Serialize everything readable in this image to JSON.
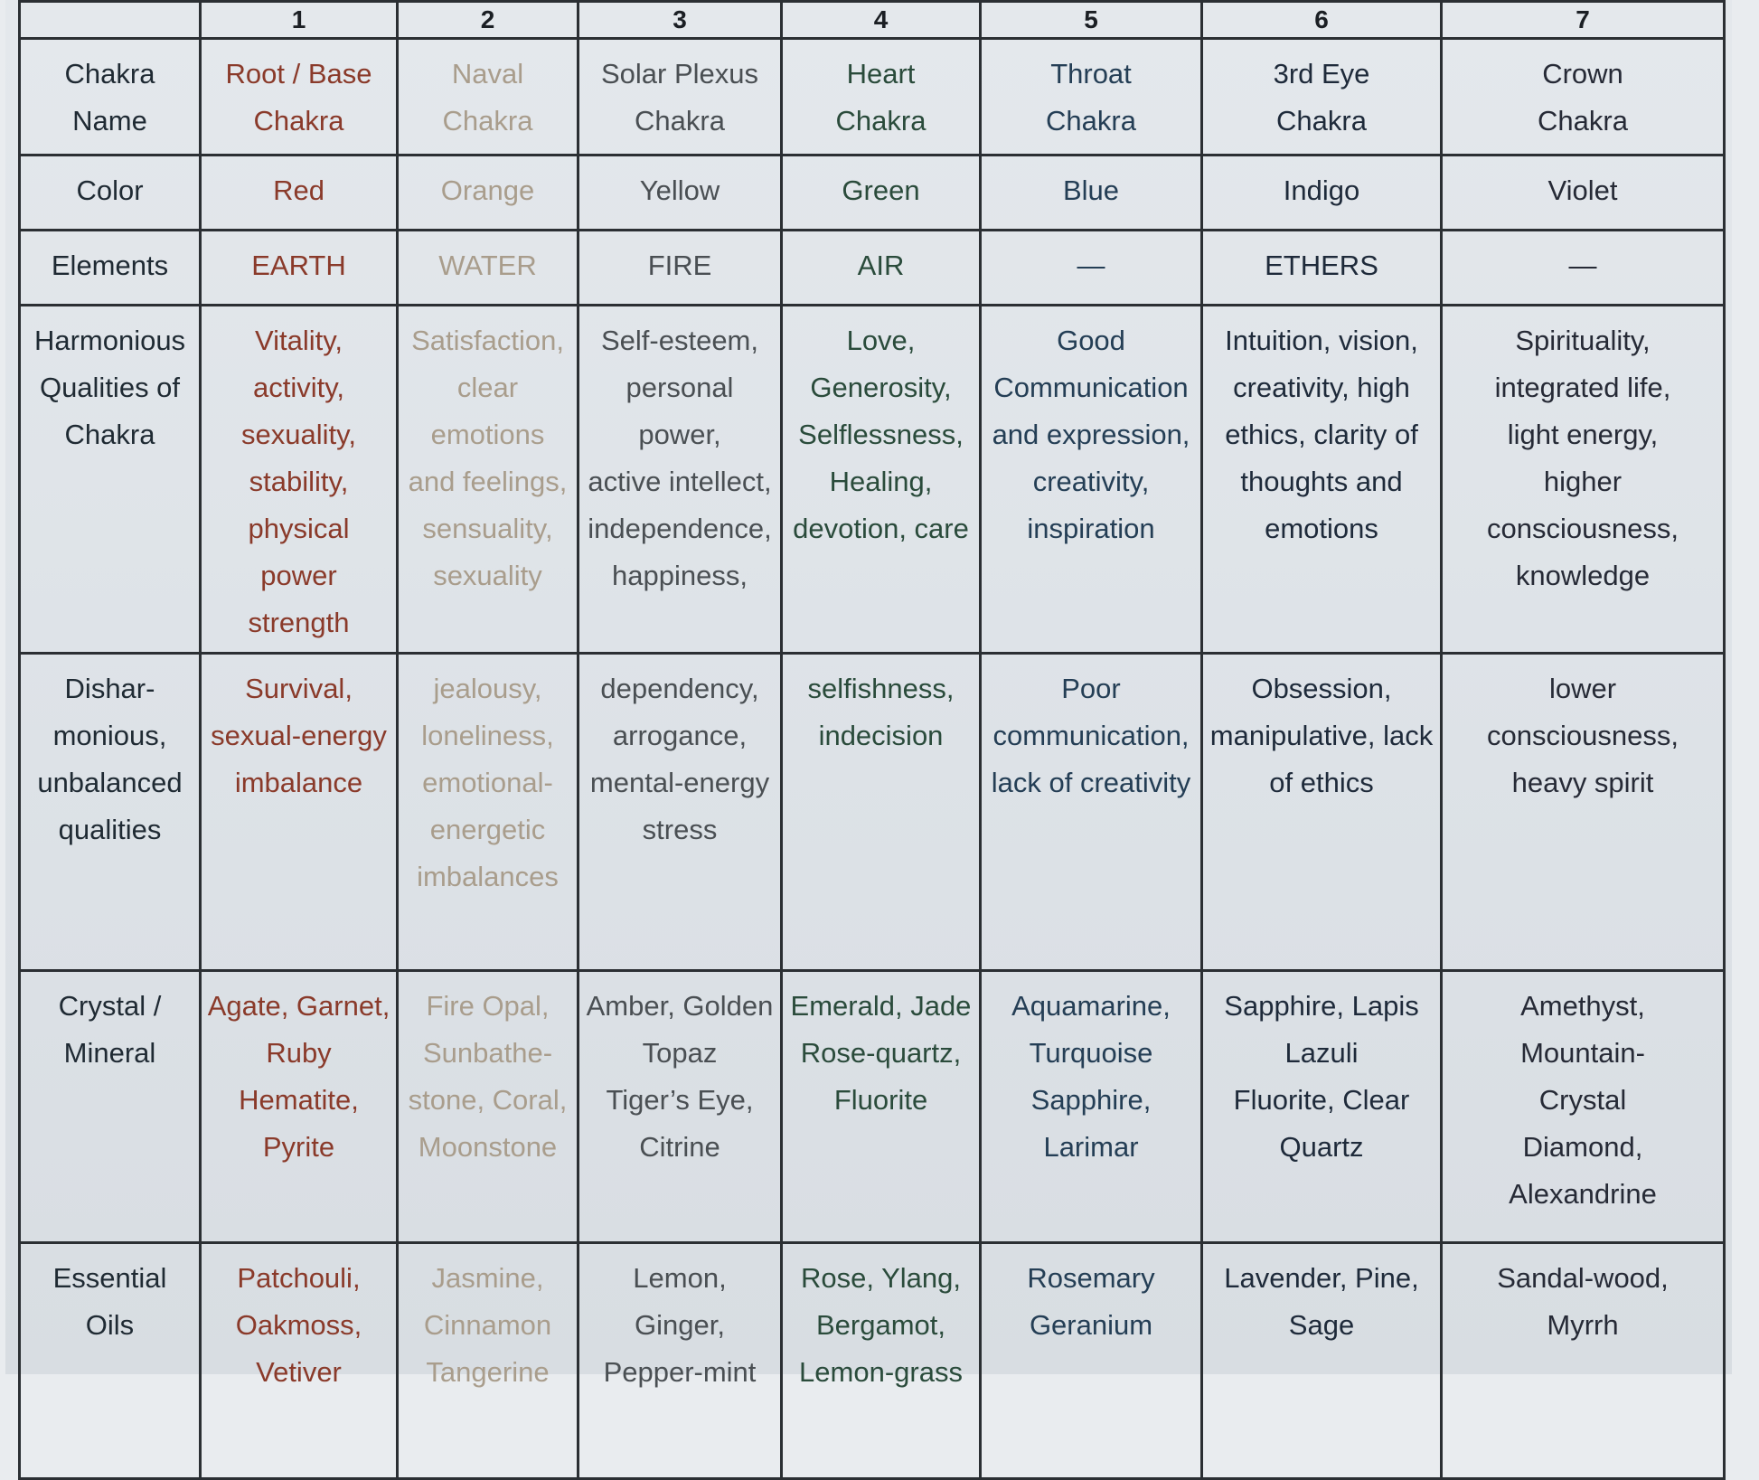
{
  "columns": [
    "1",
    "2",
    "3",
    "4",
    "5",
    "6",
    "7"
  ],
  "rows": [
    {
      "key": "name",
      "header": [
        "Chakra",
        "Name"
      ],
      "cells": [
        [
          "Root / Base",
          "Chakra"
        ],
        [
          "Naval",
          "Chakra"
        ],
        [
          "Solar Plexus",
          "Chakra"
        ],
        [
          "Heart",
          "Chakra"
        ],
        [
          "Throat",
          "Chakra"
        ],
        [
          "3rd Eye",
          "Chakra"
        ],
        [
          "Crown",
          "Chakra"
        ]
      ]
    },
    {
      "key": "color",
      "header": [
        "Color"
      ],
      "cells": [
        [
          "Red"
        ],
        [
          "Orange"
        ],
        [
          "Yellow"
        ],
        [
          "Green"
        ],
        [
          "Blue"
        ],
        [
          "Indigo"
        ],
        [
          "Violet"
        ]
      ]
    },
    {
      "key": "elements",
      "header": [
        "Elements"
      ],
      "cells": [
        [
          "EARTH"
        ],
        [
          "WATER"
        ],
        [
          "FIRE"
        ],
        [
          "AIR"
        ],
        [
          "—"
        ],
        [
          "ETHERS"
        ],
        [
          "—"
        ]
      ]
    },
    {
      "key": "harmonious",
      "header": [
        "Harmonious",
        "Qualities of",
        "Chakra"
      ],
      "cells": [
        [
          "Vitality, activity,",
          "sexuality,",
          "stability,",
          "physical power",
          "strength"
        ],
        [
          "Satisfaction,",
          "clear emotions",
          "and feelings,",
          "sensuality,",
          "sexuality"
        ],
        [
          "Self-esteem,",
          "personal power,",
          "active intellect,",
          "independence,",
          "happiness,"
        ],
        [
          "Love,",
          "Generosity,",
          "Selflessness,",
          "Healing,",
          "devotion, care"
        ],
        [
          "Good",
          "Communication",
          "and expression,",
          "creativity,",
          "inspiration"
        ],
        [
          "Intuition, vision,",
          "creativity, high",
          "ethics, clarity of",
          "thoughts and",
          "emotions"
        ],
        [
          "Spirituality,",
          "integrated life,",
          "light energy,",
          "higher",
          "consciousness,",
          "knowledge"
        ]
      ]
    },
    {
      "key": "disharmonious",
      "header": [
        "Dishar-",
        "monious,",
        "unbalanced",
        "qualities"
      ],
      "cells": [
        [
          "Survival,",
          "sexual-energy",
          "imbalance"
        ],
        [
          "jealousy,",
          "loneliness,",
          "emotional-",
          "energetic",
          "imbalances"
        ],
        [
          "dependency,",
          "arrogance,",
          "mental-energy",
          "stress"
        ],
        [
          "selfishness,",
          "indecision"
        ],
        [
          "Poor",
          "communication,",
          "lack of creativity"
        ],
        [
          "Obsession,",
          "manipulative,  lack",
          "of ethics"
        ],
        [
          "lower",
          "consciousness,",
          "heavy spirit"
        ]
      ]
    },
    {
      "key": "crystal",
      "header": [
        "Crystal /",
        "Mineral"
      ],
      "cells": [
        [
          "Agate, Garnet,",
          "Ruby",
          "Hematite, Pyrite"
        ],
        [
          "Fire Opal,",
          "Sunbathe-",
          "stone, Coral,",
          "Moonstone"
        ],
        [
          "Amber, Golden",
          "Topaz",
          "Tiger’s Eye,",
          "Citrine"
        ],
        [
          "Emerald, Jade",
          "Rose-quartz,",
          "Fluorite"
        ],
        [
          "Aquamarine,",
          "Turquoise",
          "Sapphire, Larimar"
        ],
        [
          "Sapphire, Lapis",
          "Lazuli",
          "Fluorite, Clear",
          "Quartz"
        ],
        [
          "Amethyst,",
          "Mountain-",
          "Crystal",
          "Diamond,",
          "Alexandrine"
        ]
      ]
    },
    {
      "key": "oils",
      "header": [
        "Essential",
        "Oils"
      ],
      "cells": [
        [
          "Patchouli,",
          "Oakmoss,",
          "Vetiver"
        ],
        [
          "Jasmine,",
          "Cinnamon",
          "Tangerine"
        ],
        [
          "Lemon,",
          "Ginger,",
          "Pepper-mint"
        ],
        [
          "Rose, Ylang,",
          "Bergamot,",
          "Lemon-grass"
        ],
        [
          "Rosemary",
          "Geranium"
        ],
        [
          "Lavender, Pine,",
          "Sage"
        ],
        [
          "Sandal-wood,",
          "Myrrh"
        ]
      ]
    }
  ],
  "text_colors": [
    "#8a3a2a",
    "#a99d8c",
    "#4a4f53",
    "#2a4b3b",
    "#243e55",
    "#1e2a3a",
    "#262a36"
  ]
}
